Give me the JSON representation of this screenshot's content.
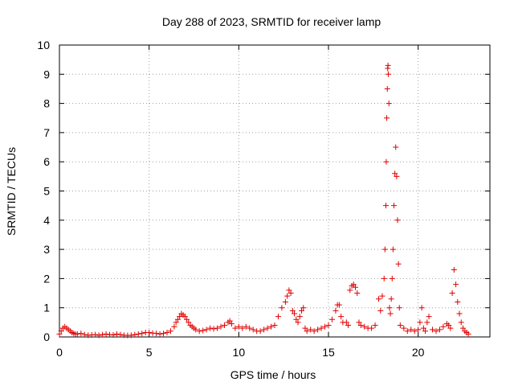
{
  "chart_data": {
    "type": "scatter",
    "title": "Day 288 of 2023, SRMTID for receiver lamp",
    "xlabel": "GPS time / hours",
    "ylabel": "SRMTID / TECUs",
    "xlim": [
      0,
      24
    ],
    "ylim": [
      0,
      10
    ],
    "xticks": [
      0,
      5,
      10,
      15,
      20
    ],
    "xtick_labels": [
      "0",
      "5",
      "10",
      "15",
      "20"
    ],
    "yticks": [
      0,
      1,
      2,
      3,
      4,
      5,
      6,
      7,
      8,
      9,
      10
    ],
    "ytick_labels": [
      "0",
      "1",
      "2",
      "3",
      "4",
      "5",
      "6",
      "7",
      "8",
      "9",
      "10"
    ],
    "grid": true,
    "marker": "+",
    "marker_color": "#e00000",
    "series": [
      {
        "name": "SRMTID",
        "points": [
          [
            0.0,
            0.1
          ],
          [
            0.1,
            0.2
          ],
          [
            0.2,
            0.3
          ],
          [
            0.3,
            0.35
          ],
          [
            0.4,
            0.3
          ],
          [
            0.5,
            0.25
          ],
          [
            0.6,
            0.2
          ],
          [
            0.7,
            0.15
          ],
          [
            0.8,
            0.12
          ],
          [
            0.9,
            0.1
          ],
          [
            1.0,
            0.1
          ],
          [
            1.2,
            0.12
          ],
          [
            1.4,
            0.08
          ],
          [
            1.6,
            0.06
          ],
          [
            1.8,
            0.07
          ],
          [
            2.0,
            0.08
          ],
          [
            2.2,
            0.06
          ],
          [
            2.4,
            0.08
          ],
          [
            2.6,
            0.1
          ],
          [
            2.8,
            0.08
          ],
          [
            3.0,
            0.07
          ],
          [
            3.2,
            0.1
          ],
          [
            3.4,
            0.08
          ],
          [
            3.6,
            0.06
          ],
          [
            3.8,
            0.05
          ],
          [
            4.0,
            0.06
          ],
          [
            4.2,
            0.08
          ],
          [
            4.4,
            0.1
          ],
          [
            4.6,
            0.12
          ],
          [
            4.8,
            0.15
          ],
          [
            5.0,
            0.15
          ],
          [
            5.2,
            0.13
          ],
          [
            5.4,
            0.12
          ],
          [
            5.6,
            0.1
          ],
          [
            5.8,
            0.12
          ],
          [
            6.0,
            0.15
          ],
          [
            6.2,
            0.2
          ],
          [
            6.4,
            0.35
          ],
          [
            6.5,
            0.5
          ],
          [
            6.6,
            0.6
          ],
          [
            6.7,
            0.7
          ],
          [
            6.8,
            0.8
          ],
          [
            6.9,
            0.75
          ],
          [
            7.0,
            0.7
          ],
          [
            7.1,
            0.6
          ],
          [
            7.2,
            0.5
          ],
          [
            7.3,
            0.4
          ],
          [
            7.4,
            0.35
          ],
          [
            7.5,
            0.3
          ],
          [
            7.6,
            0.25
          ],
          [
            7.8,
            0.2
          ],
          [
            8.0,
            0.22
          ],
          [
            8.2,
            0.25
          ],
          [
            8.4,
            0.3
          ],
          [
            8.6,
            0.28
          ],
          [
            8.8,
            0.3
          ],
          [
            9.0,
            0.35
          ],
          [
            9.2,
            0.4
          ],
          [
            9.4,
            0.5
          ],
          [
            9.5,
            0.55
          ],
          [
            9.6,
            0.45
          ],
          [
            9.8,
            0.3
          ],
          [
            10.0,
            0.35
          ],
          [
            10.2,
            0.3
          ],
          [
            10.4,
            0.35
          ],
          [
            10.6,
            0.3
          ],
          [
            10.8,
            0.25
          ],
          [
            11.0,
            0.2
          ],
          [
            11.2,
            0.2
          ],
          [
            11.4,
            0.25
          ],
          [
            11.6,
            0.3
          ],
          [
            11.8,
            0.35
          ],
          [
            12.0,
            0.4
          ],
          [
            12.2,
            0.7
          ],
          [
            12.4,
            1.0
          ],
          [
            12.6,
            1.2
          ],
          [
            12.7,
            1.4
          ],
          [
            12.8,
            1.6
          ],
          [
            12.9,
            1.5
          ],
          [
            13.0,
            0.9
          ],
          [
            13.1,
            0.8
          ],
          [
            13.2,
            0.6
          ],
          [
            13.3,
            0.5
          ],
          [
            13.4,
            0.7
          ],
          [
            13.5,
            0.9
          ],
          [
            13.6,
            1.0
          ],
          [
            13.7,
            0.3
          ],
          [
            13.8,
            0.2
          ],
          [
            14.0,
            0.25
          ],
          [
            14.2,
            0.2
          ],
          [
            14.4,
            0.25
          ],
          [
            14.6,
            0.3
          ],
          [
            14.8,
            0.35
          ],
          [
            15.0,
            0.4
          ],
          [
            15.2,
            0.6
          ],
          [
            15.4,
            0.9
          ],
          [
            15.5,
            1.1
          ],
          [
            15.6,
            1.1
          ],
          [
            15.7,
            0.7
          ],
          [
            15.8,
            0.5
          ],
          [
            16.0,
            0.5
          ],
          [
            16.1,
            0.4
          ],
          [
            16.2,
            1.6
          ],
          [
            16.3,
            1.75
          ],
          [
            16.4,
            1.8
          ],
          [
            16.5,
            1.7
          ],
          [
            16.6,
            1.5
          ],
          [
            16.7,
            0.5
          ],
          [
            16.8,
            0.4
          ],
          [
            17.0,
            0.35
          ],
          [
            17.2,
            0.3
          ],
          [
            17.4,
            0.3
          ],
          [
            17.6,
            0.4
          ],
          [
            17.8,
            1.3
          ],
          [
            17.9,
            0.9
          ],
          [
            18.0,
            1.4
          ],
          [
            18.1,
            2.0
          ],
          [
            18.15,
            3.0
          ],
          [
            18.2,
            4.5
          ],
          [
            18.22,
            6.0
          ],
          [
            18.25,
            7.5
          ],
          [
            18.28,
            8.5
          ],
          [
            18.3,
            9.2
          ],
          [
            18.32,
            9.3
          ],
          [
            18.34,
            9.0
          ],
          [
            18.37,
            8.0
          ],
          [
            18.4,
            1.0
          ],
          [
            18.45,
            0.8
          ],
          [
            18.5,
            1.3
          ],
          [
            18.55,
            2.0
          ],
          [
            18.6,
            3.0
          ],
          [
            18.65,
            4.5
          ],
          [
            18.7,
            5.6
          ],
          [
            18.75,
            6.5
          ],
          [
            18.8,
            5.5
          ],
          [
            18.85,
            4.0
          ],
          [
            18.9,
            2.5
          ],
          [
            18.95,
            1.0
          ],
          [
            19.0,
            0.4
          ],
          [
            19.2,
            0.3
          ],
          [
            19.4,
            0.2
          ],
          [
            19.6,
            0.25
          ],
          [
            19.8,
            0.2
          ],
          [
            20.0,
            0.25
          ],
          [
            20.1,
            0.5
          ],
          [
            20.2,
            1.0
          ],
          [
            20.3,
            0.3
          ],
          [
            20.4,
            0.2
          ],
          [
            20.5,
            0.5
          ],
          [
            20.6,
            0.7
          ],
          [
            20.8,
            0.25
          ],
          [
            21.0,
            0.2
          ],
          [
            21.2,
            0.25
          ],
          [
            21.4,
            0.35
          ],
          [
            21.6,
            0.45
          ],
          [
            21.7,
            0.4
          ],
          [
            21.8,
            0.3
          ],
          [
            21.9,
            1.5
          ],
          [
            22.0,
            2.3
          ],
          [
            22.1,
            1.8
          ],
          [
            22.2,
            1.2
          ],
          [
            22.3,
            0.8
          ],
          [
            22.4,
            0.5
          ],
          [
            22.5,
            0.3
          ],
          [
            22.6,
            0.2
          ],
          [
            22.7,
            0.15
          ],
          [
            22.8,
            0.1
          ]
        ]
      }
    ]
  }
}
